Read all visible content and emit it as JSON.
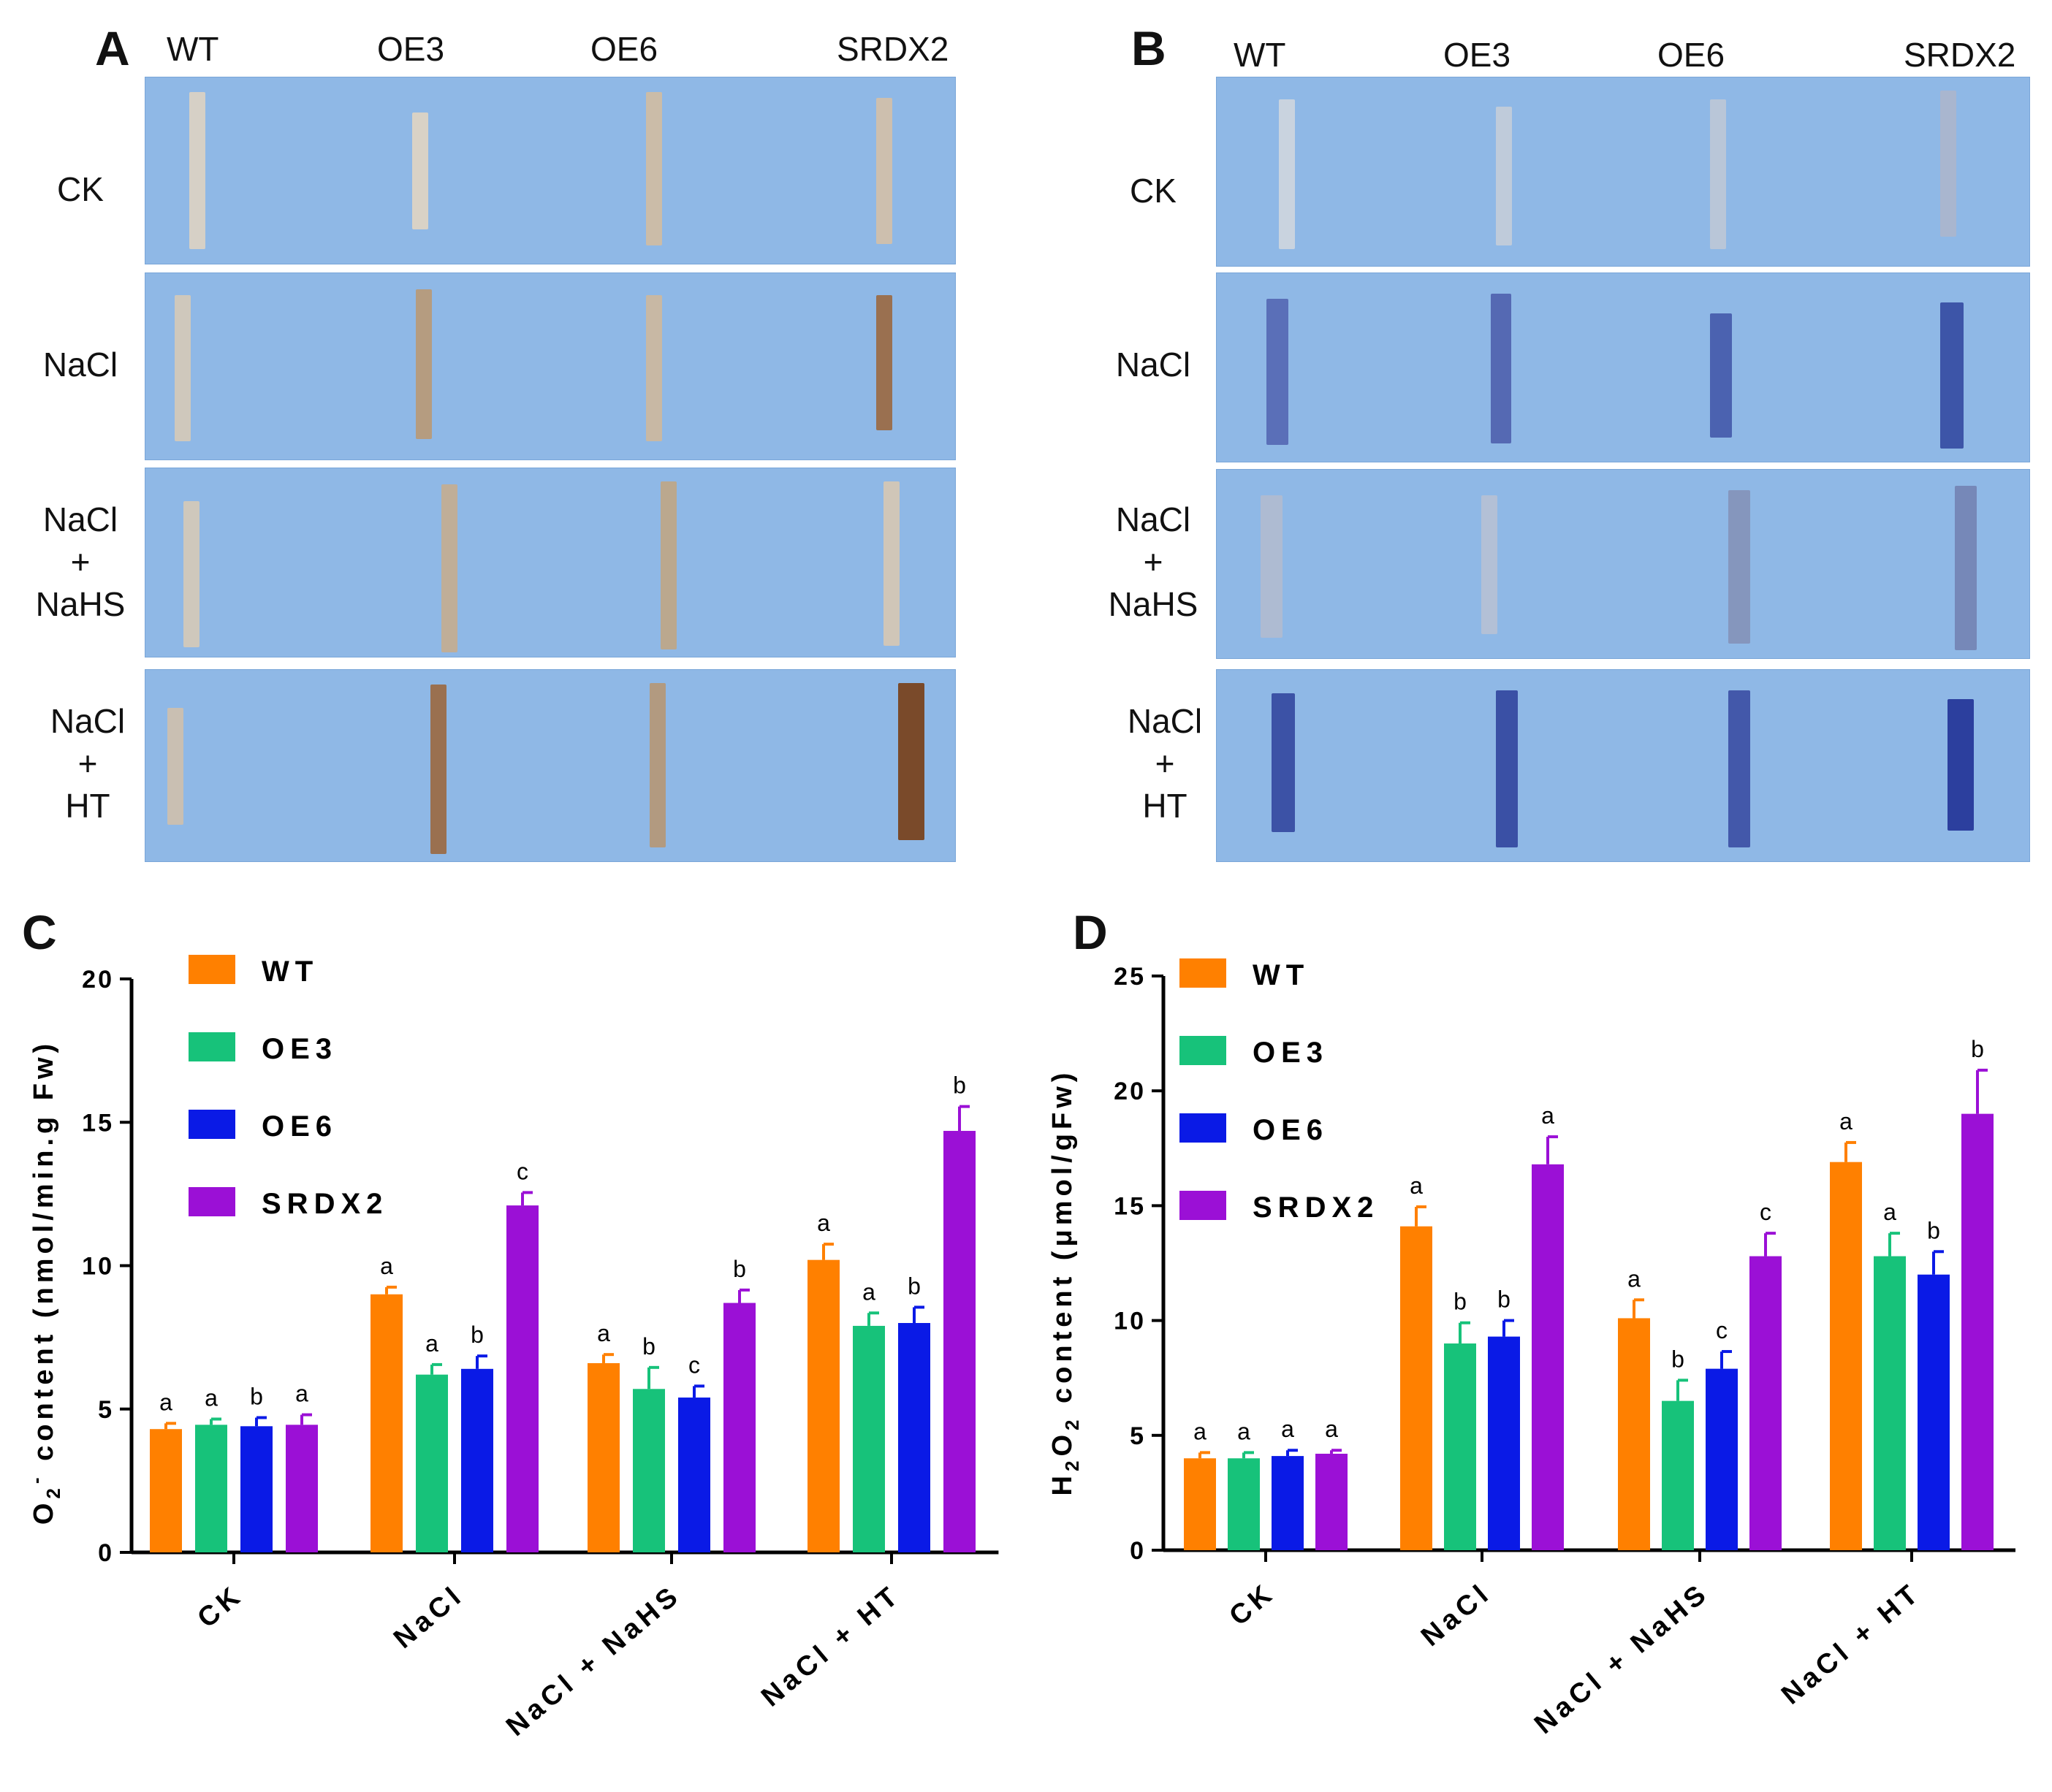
{
  "panels": {
    "A": {
      "letter": "A"
    },
    "B": {
      "letter": "B"
    },
    "C": {
      "letter": "C"
    },
    "D": {
      "letter": "D"
    }
  },
  "photo_columns": [
    "WT",
    "OE3",
    "OE6",
    "SRDX2"
  ],
  "photo_rows": [
    {
      "lines": [
        "CK"
      ]
    },
    {
      "lines": [
        "NaCl"
      ]
    },
    {
      "lines": [
        "NaCl",
        "+",
        "NaHS"
      ]
    },
    {
      "lines": [
        "NaCl",
        "+",
        "HT"
      ]
    }
  ],
  "colors": {
    "WT": "#ff8000",
    "OE3": "#17c27a",
    "OE6": "#0a1ae6",
    "SRDX2": "#9b10d6",
    "photo_bg": "#8fb8e6",
    "dab_stain": "#7a4a2a",
    "nbt_stain": "#2c3f9e"
  },
  "chart_data": [
    {
      "panel": "C",
      "type": "bar",
      "ylabel": "O2- content (nmol/min.g Fw)",
      "ylim": [
        0,
        20
      ],
      "yticks": [
        0,
        5,
        10,
        15,
        20
      ],
      "categories": [
        "CK",
        "NaCl",
        "NaCl + NaHS",
        "NaCl + HT"
      ],
      "series": [
        {
          "name": "WT",
          "color": "#ff8000",
          "values": [
            4.3,
            9.0,
            6.6,
            10.2
          ],
          "errors": [
            0.2,
            0.25,
            0.3,
            0.55
          ],
          "letters": [
            "a",
            "a",
            "a",
            "a"
          ]
        },
        {
          "name": "OE3",
          "color": "#17c27a",
          "values": [
            4.45,
            6.2,
            5.7,
            7.9
          ],
          "errors": [
            0.2,
            0.35,
            0.75,
            0.45
          ],
          "letters": [
            "a",
            "a",
            "b",
            "a"
          ]
        },
        {
          "name": "OE6",
          "color": "#0a1ae6",
          "values": [
            4.4,
            6.4,
            5.4,
            8.0
          ],
          "errors": [
            0.3,
            0.45,
            0.4,
            0.55
          ],
          "letters": [
            "b",
            "b",
            "c",
            "b"
          ]
        },
        {
          "name": "SRDX2",
          "color": "#9b10d6",
          "values": [
            4.45,
            12.1,
            8.7,
            14.7
          ],
          "errors": [
            0.35,
            0.45,
            0.45,
            0.85
          ],
          "letters": [
            "a",
            "c",
            "b",
            "b"
          ]
        }
      ]
    },
    {
      "panel": "D",
      "type": "bar",
      "ylabel": "H2O2 content (μmol/gFw)",
      "ylim": [
        0,
        25
      ],
      "yticks": [
        0,
        5,
        10,
        15,
        20,
        25
      ],
      "categories": [
        "CK",
        "NaCl",
        "NaCl + NaHS",
        "NaCl + HT"
      ],
      "series": [
        {
          "name": "WT",
          "color": "#ff8000",
          "values": [
            4.0,
            14.1,
            10.1,
            16.9
          ],
          "errors": [
            0.25,
            0.85,
            0.8,
            0.85
          ],
          "letters": [
            "a",
            "a",
            "a",
            "a"
          ]
        },
        {
          "name": "OE3",
          "color": "#17c27a",
          "values": [
            4.0,
            9.0,
            6.5,
            12.8
          ],
          "errors": [
            0.25,
            0.9,
            0.9,
            1.0
          ],
          "letters": [
            "a",
            "b",
            "b",
            "a"
          ]
        },
        {
          "name": "OE6",
          "color": "#0a1ae6",
          "values": [
            4.1,
            9.3,
            7.9,
            12.0
          ],
          "errors": [
            0.25,
            0.7,
            0.75,
            1.0
          ],
          "letters": [
            "a",
            "b",
            "c",
            "b"
          ]
        },
        {
          "name": "SRDX2",
          "color": "#9b10d6",
          "values": [
            4.2,
            16.8,
            12.8,
            19.0
          ],
          "errors": [
            0.15,
            1.2,
            1.0,
            1.9
          ],
          "letters": [
            "a",
            "a",
            "c",
            "b"
          ]
        }
      ]
    }
  ]
}
